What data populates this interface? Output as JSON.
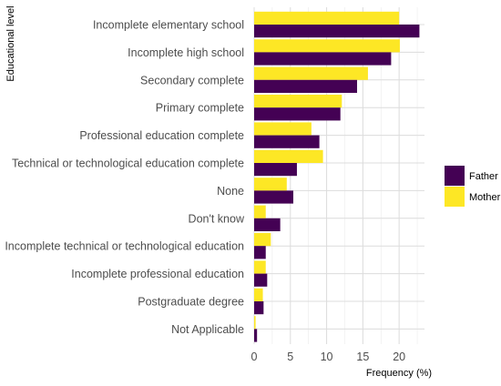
{
  "chart_data": {
    "type": "bar",
    "orientation": "horizontal",
    "xlabel": "Frequency (%)",
    "ylabel": "Educational level",
    "xlim": [
      0,
      23.5
    ],
    "xticks": [
      0,
      5,
      10,
      15,
      20
    ],
    "grid": true,
    "legend_position": "right",
    "categories": [
      "Incomplete elementary school",
      "Incomplete high school",
      "Secondary complete",
      "Primary complete",
      "Professional education complete",
      "Technical or technological education complete",
      "None",
      "Don't know",
      "Incomplete technical or technological education",
      "Incomplete professional education",
      "Postgraduate degree",
      "Not Applicable"
    ],
    "series": [
      {
        "name": "Father",
        "color": "#440154",
        "values": [
          22.8,
          18.9,
          14.2,
          11.9,
          9.0,
          5.9,
          5.4,
          3.6,
          1.6,
          1.8,
          1.3,
          0.4
        ]
      },
      {
        "name": "Mother",
        "color": "#FDE725",
        "values": [
          20.0,
          20.1,
          15.7,
          12.1,
          7.9,
          9.5,
          4.5,
          1.6,
          2.3,
          1.6,
          1.2,
          0.2
        ]
      }
    ]
  }
}
